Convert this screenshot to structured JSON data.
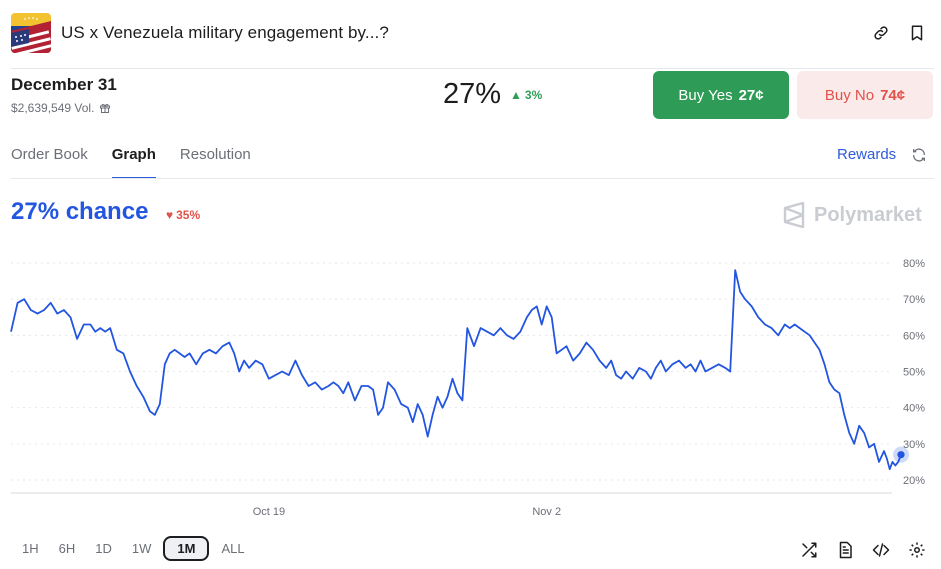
{
  "header": {
    "title": "US x Venezuela military engagement by...?",
    "icons": [
      "link-icon",
      "bookmark-icon"
    ]
  },
  "market": {
    "date_title": "December 31",
    "volume": "$2,639,549 Vol.",
    "probability": "27%",
    "change": "3%",
    "change_direction": "up"
  },
  "buttons": {
    "yes_label": "Buy Yes",
    "yes_price": "27¢",
    "no_label": "Buy No",
    "no_price": "74¢"
  },
  "tabs": [
    {
      "label": "Order Book",
      "active": false
    },
    {
      "label": "Graph",
      "active": true
    },
    {
      "label": "Resolution",
      "active": false
    }
  ],
  "rewards_label": "Rewards",
  "chance": {
    "label": "27% chance",
    "change": "35%",
    "change_direction": "down"
  },
  "watermark": "Polymarket",
  "colors": {
    "accent": "#2255e0",
    "up": "#2f9e57",
    "down": "#e0514a",
    "buy_yes": "#2e9b56",
    "buy_no_bg": "#fbeaea"
  },
  "time_ranges": [
    {
      "label": "1H",
      "active": false
    },
    {
      "label": "6H",
      "active": false
    },
    {
      "label": "1D",
      "active": false
    },
    {
      "label": "1W",
      "active": false
    },
    {
      "label": "1M",
      "active": true
    },
    {
      "label": "ALL",
      "active": false
    }
  ],
  "toolbar_icons": [
    "shuffle-icon",
    "document-icon",
    "code-icon",
    "settings-icon"
  ],
  "chart_data": {
    "type": "line",
    "title": "",
    "xlabel": "",
    "ylabel": "",
    "x_ticks": [
      "Oct 19",
      "Nov 2"
    ],
    "y_ticks": [
      "80%",
      "70%",
      "60%",
      "50%",
      "40%",
      "30%",
      "20%"
    ],
    "ylim": [
      20,
      80
    ],
    "x_range": [
      "Oct 6",
      "Nov 19"
    ],
    "grid": true,
    "series": [
      {
        "color": "#2255e0",
        "points": [
          [
            "Oct 6",
            61
          ],
          [
            "Oct 6",
            69
          ],
          [
            "Oct 6",
            70
          ],
          [
            "Oct 7",
            67
          ],
          [
            "Oct 7",
            66
          ],
          [
            "Oct 7",
            67
          ],
          [
            "Oct 8",
            69
          ],
          [
            "Oct 8",
            66
          ],
          [
            "Oct 8",
            67
          ],
          [
            "Oct 9",
            65
          ],
          [
            "Oct 9",
            59
          ],
          [
            "Oct 9",
            63
          ],
          [
            "Oct 10",
            63
          ],
          [
            "Oct 10",
            61
          ],
          [
            "Oct 10",
            62
          ],
          [
            "Oct 10",
            61
          ],
          [
            "Oct 11",
            62
          ],
          [
            "Oct 11",
            56
          ],
          [
            "Oct 11",
            55
          ],
          [
            "Oct 12",
            50
          ],
          [
            "Oct 12",
            46
          ],
          [
            "Oct 12",
            43
          ],
          [
            "Oct 13",
            39
          ],
          [
            "Oct 13",
            38
          ],
          [
            "Oct 13",
            41
          ],
          [
            "Oct 13",
            52
          ],
          [
            "Oct 14",
            55
          ],
          [
            "Oct 14",
            56
          ],
          [
            "Oct 14",
            55
          ],
          [
            "Oct 14",
            54
          ],
          [
            "Oct 15",
            55
          ],
          [
            "Oct 15",
            52
          ],
          [
            "Oct 15",
            55
          ],
          [
            "Oct 16",
            56
          ],
          [
            "Oct 16",
            55
          ],
          [
            "Oct 16",
            57
          ],
          [
            "Oct 17",
            58
          ],
          [
            "Oct 17",
            55
          ],
          [
            "Oct 17",
            50
          ],
          [
            "Oct 17",
            53
          ],
          [
            "Oct 18",
            51
          ],
          [
            "Oct 18",
            53
          ],
          [
            "Oct 18",
            52
          ],
          [
            "Oct 19",
            48
          ],
          [
            "Oct 19",
            49
          ],
          [
            "Oct 19",
            50
          ],
          [
            "Oct 20",
            49
          ],
          [
            "Oct 20",
            53
          ],
          [
            "Oct 20",
            49
          ],
          [
            "Oct 21",
            46
          ],
          [
            "Oct 21",
            47
          ],
          [
            "Oct 21",
            45
          ],
          [
            "Oct 22",
            46
          ],
          [
            "Oct 22",
            47
          ],
          [
            "Oct 22",
            46
          ],
          [
            "Oct 22",
            44
          ],
          [
            "Oct 23",
            47
          ],
          [
            "Oct 23",
            42
          ],
          [
            "Oct 23",
            46
          ],
          [
            "Oct 24",
            46
          ],
          [
            "Oct 24",
            45
          ],
          [
            "Oct 24",
            38
          ],
          [
            "Oct 24",
            40
          ],
          [
            "Oct 25",
            47
          ],
          [
            "Oct 25",
            45
          ],
          [
            "Oct 25",
            41
          ],
          [
            "Oct 26",
            40
          ],
          [
            "Oct 26",
            36
          ],
          [
            "Oct 26",
            41
          ],
          [
            "Oct 26",
            38
          ],
          [
            "Oct 27",
            32
          ],
          [
            "Oct 27",
            38
          ],
          [
            "Oct 27",
            43
          ],
          [
            "Oct 27",
            40
          ],
          [
            "Oct 28",
            43
          ],
          [
            "Oct 28",
            48
          ],
          [
            "Oct 28",
            44
          ],
          [
            "Oct 28",
            42
          ],
          [
            "Oct 29",
            62
          ],
          [
            "Oct 29",
            57
          ],
          [
            "Oct 29",
            62
          ],
          [
            "Oct 30",
            61
          ],
          [
            "Oct 30",
            60
          ],
          [
            "Oct 30",
            62
          ],
          [
            "Oct 31",
            60
          ],
          [
            "Oct 31",
            59
          ],
          [
            "Oct 31",
            61
          ],
          [
            "Nov 1",
            65
          ],
          [
            "Nov 1",
            67
          ],
          [
            "Nov 1",
            68
          ],
          [
            "Nov 1",
            63
          ],
          [
            "Nov 2",
            68
          ],
          [
            "Nov 2",
            65
          ],
          [
            "Nov 2",
            55
          ],
          [
            "Nov 2",
            56
          ],
          [
            "Nov 3",
            57
          ],
          [
            "Nov 3",
            53
          ],
          [
            "Nov 3",
            55
          ],
          [
            "Nov 4",
            58
          ],
          [
            "Nov 4",
            56
          ],
          [
            "Nov 4",
            53
          ],
          [
            "Nov 5",
            51
          ],
          [
            "Nov 5",
            53
          ],
          [
            "Nov 5",
            49
          ],
          [
            "Nov 5",
            48
          ],
          [
            "Nov 6",
            50
          ],
          [
            "Nov 6",
            48
          ],
          [
            "Nov 6",
            51
          ],
          [
            "Nov 7",
            50
          ],
          [
            "Nov 7",
            48
          ],
          [
            "Nov 7",
            51
          ],
          [
            "Nov 7",
            53
          ],
          [
            "Nov 8",
            50
          ],
          [
            "Nov 8",
            52
          ],
          [
            "Nov 8",
            53
          ],
          [
            "Nov 9",
            51
          ],
          [
            "Nov 9",
            52
          ],
          [
            "Nov 9",
            50
          ],
          [
            "Nov 9",
            53
          ],
          [
            "Nov 10",
            50
          ],
          [
            "Nov 10",
            51
          ],
          [
            "Nov 10",
            52
          ],
          [
            "Nov 11",
            51
          ],
          [
            "Nov 11",
            50
          ],
          [
            "Nov 11",
            78
          ],
          [
            "Nov 11",
            72
          ],
          [
            "Nov 12",
            70
          ],
          [
            "Nov 12",
            68
          ],
          [
            "Nov 12",
            65
          ],
          [
            "Nov 13",
            63
          ],
          [
            "Nov 13",
            62
          ],
          [
            "Nov 13",
            60
          ],
          [
            "Nov 14",
            63
          ],
          [
            "Nov 14",
            62
          ],
          [
            "Nov 14",
            63
          ],
          [
            "Nov 14",
            62
          ],
          [
            "Nov 15",
            61
          ],
          [
            "Nov 15",
            60
          ],
          [
            "Nov 15",
            58
          ],
          [
            "Nov 15",
            56
          ],
          [
            "Nov 16",
            52
          ],
          [
            "Nov 16",
            47
          ],
          [
            "Nov 16",
            45
          ],
          [
            "Nov 16",
            44
          ],
          [
            "Nov 17",
            38
          ],
          [
            "Nov 17",
            33
          ],
          [
            "Nov 17",
            30
          ],
          [
            "Nov 17",
            35
          ],
          [
            "Nov 18",
            33
          ],
          [
            "Nov 18",
            29
          ],
          [
            "Nov 18",
            30
          ],
          [
            "Nov 18",
            25
          ],
          [
            "Nov 19",
            28
          ],
          [
            "Nov 19",
            26
          ],
          [
            "Nov 19",
            23
          ],
          [
            "Nov 19",
            25
          ],
          [
            "Nov 19",
            24
          ],
          [
            "Nov 19",
            25
          ],
          [
            "Nov 19",
            27
          ]
        ]
      }
    ],
    "current_value": 27
  }
}
